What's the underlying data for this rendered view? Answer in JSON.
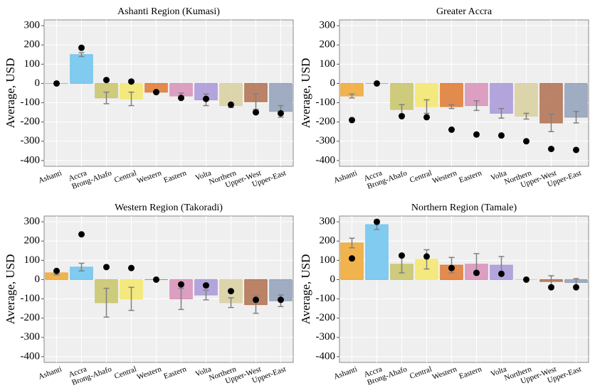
{
  "chart_data": [
    {
      "type": "bar",
      "title": "Ashanti Region (Kumasi)",
      "ylabel": "Average, USD",
      "categories": [
        "Ashanti",
        "Accra",
        "Brong-Ahafo",
        "Central",
        "Western",
        "Eastern",
        "Volta",
        "Northern",
        "Upper-West",
        "Upper-East"
      ],
      "values": [
        0,
        150,
        -75,
        -80,
        -45,
        -65,
        -85,
        -115,
        -95,
        -145
      ],
      "errors": [
        null,
        10,
        30,
        35,
        null,
        15,
        30,
        10,
        40,
        30
      ],
      "points": [
        0,
        185,
        18,
        10,
        -45,
        -75,
        -80,
        -110,
        -150,
        -155
      ],
      "colors": [
        "#f0a830",
        "#6cc4ee",
        "#c8c468",
        "#f5e86a",
        "#e07830",
        "#d890b8",
        "#a898d8",
        "#d8d0a0",
        "#b07050",
        "#90a0b8"
      ],
      "ylim": [
        -430,
        330
      ],
      "yticks": [
        -400,
        -300,
        -200,
        -100,
        0,
        100,
        200,
        300
      ],
      "grid": true
    },
    {
      "type": "bar",
      "title": "Greater Accra",
      "ylabel": "Average, USD",
      "categories": [
        "Ashanti",
        "Accra",
        "Brong-Ahafo",
        "Central",
        "Western",
        "Eastern",
        "Volta",
        "Northern",
        "Upper-West",
        "Upper-East"
      ],
      "values": [
        -65,
        0,
        -135,
        -120,
        -120,
        -115,
        -155,
        -170,
        -205,
        -175
      ],
      "errors": [
        10,
        null,
        25,
        35,
        10,
        25,
        25,
        15,
        45,
        30
      ],
      "points": [
        -190,
        0,
        -170,
        -175,
        -240,
        -265,
        -270,
        -300,
        -340,
        -345
      ],
      "colors": [
        "#f0a830",
        "#6cc4ee",
        "#c8c468",
        "#f5e86a",
        "#e07830",
        "#d890b8",
        "#a898d8",
        "#d8d0a0",
        "#b07050",
        "#90a0b8"
      ],
      "ylim": [
        -430,
        330
      ],
      "yticks": [
        -400,
        -300,
        -200,
        -100,
        0,
        100,
        200,
        300
      ],
      "grid": true
    },
    {
      "type": "bar",
      "title": "Western Region (Takoradi)",
      "ylabel": "Average, USD",
      "categories": [
        "Ashanti",
        "Accra",
        "Brong-Ahafo",
        "Central",
        "Western",
        "Eastern",
        "Volta",
        "Northern",
        "Upper-West",
        "Upper-East"
      ],
      "values": [
        35,
        65,
        -120,
        -100,
        0,
        -100,
        -80,
        -120,
        -130,
        -110
      ],
      "errors": [
        10,
        20,
        75,
        60,
        null,
        55,
        25,
        25,
        45,
        30
      ],
      "points": [
        45,
        235,
        65,
        60,
        0,
        -25,
        -30,
        -60,
        -105,
        -105
      ],
      "colors": [
        "#f0a830",
        "#6cc4ee",
        "#c8c468",
        "#f5e86a",
        "#e07830",
        "#d890b8",
        "#a898d8",
        "#d8d0a0",
        "#b07050",
        "#90a0b8"
      ],
      "ylim": [
        -430,
        330
      ],
      "yticks": [
        -400,
        -300,
        -200,
        -100,
        0,
        100,
        200,
        300
      ],
      "grid": true
    },
    {
      "type": "bar",
      "title": "Northern Region (Tamale)",
      "ylabel": "Average, USD",
      "categories": [
        "Ashanti",
        "Accra",
        "Brong-Ahafo",
        "Central",
        "Western",
        "Eastern",
        "Volta",
        "Northern",
        "Upper-West",
        "Upper-East"
      ],
      "values": [
        190,
        285,
        80,
        105,
        75,
        80,
        75,
        0,
        -10,
        -15
      ],
      "errors": [
        25,
        25,
        45,
        50,
        40,
        55,
        45,
        null,
        30,
        20
      ],
      "points": [
        110,
        300,
        125,
        120,
        60,
        35,
        30,
        0,
        -40,
        -40
      ],
      "colors": [
        "#f0a830",
        "#6cc4ee",
        "#c8c468",
        "#f5e86a",
        "#e07830",
        "#d890b8",
        "#a898d8",
        "#d8d0a0",
        "#b07050",
        "#90a0b8"
      ],
      "ylim": [
        -430,
        330
      ],
      "yticks": [
        -400,
        -300,
        -200,
        -100,
        0,
        100,
        200,
        300
      ],
      "grid": true
    }
  ]
}
